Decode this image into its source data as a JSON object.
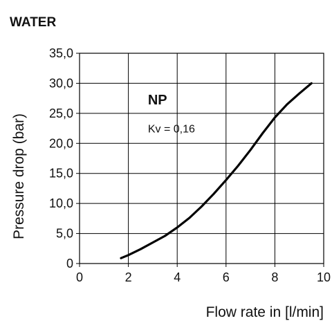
{
  "chart_data": {
    "type": "line",
    "title": "WATER",
    "xlabel": "Flow rate in [l/min]",
    "ylabel": "Pressure drop (bar)",
    "xlim": [
      0,
      10
    ],
    "ylim": [
      0,
      35
    ],
    "x_ticks": [
      0,
      2,
      4,
      6,
      8,
      10
    ],
    "x_tick_labels": [
      "0",
      "2",
      "4",
      "6",
      "8",
      "10"
    ],
    "y_ticks": [
      0,
      5,
      10,
      15,
      20,
      25,
      30,
      35
    ],
    "y_tick_labels": [
      "0",
      "5,0",
      "10,0",
      "15,0",
      "20,0",
      "25,0",
      "30,0",
      "35,0"
    ],
    "grid": true,
    "legend": "none",
    "annotations": [
      {
        "text": "NP",
        "x": 2.8,
        "y": 26.5
      },
      {
        "text": "Kv = 0,16",
        "x": 2.8,
        "y": 21.8
      }
    ],
    "series": [
      {
        "color": "#000000",
        "points": [
          [
            1.7,
            0.9
          ],
          [
            2.0,
            1.4
          ],
          [
            2.5,
            2.4
          ],
          [
            3.0,
            3.5
          ],
          [
            3.5,
            4.6
          ],
          [
            4.0,
            6.0
          ],
          [
            4.5,
            7.6
          ],
          [
            5.0,
            9.5
          ],
          [
            5.5,
            11.6
          ],
          [
            6.0,
            13.9
          ],
          [
            6.5,
            16.3
          ],
          [
            7.0,
            18.9
          ],
          [
            7.5,
            21.7
          ],
          [
            8.0,
            24.3
          ],
          [
            8.5,
            26.5
          ],
          [
            9.0,
            28.3
          ],
          [
            9.5,
            30.0
          ]
        ]
      }
    ]
  }
}
